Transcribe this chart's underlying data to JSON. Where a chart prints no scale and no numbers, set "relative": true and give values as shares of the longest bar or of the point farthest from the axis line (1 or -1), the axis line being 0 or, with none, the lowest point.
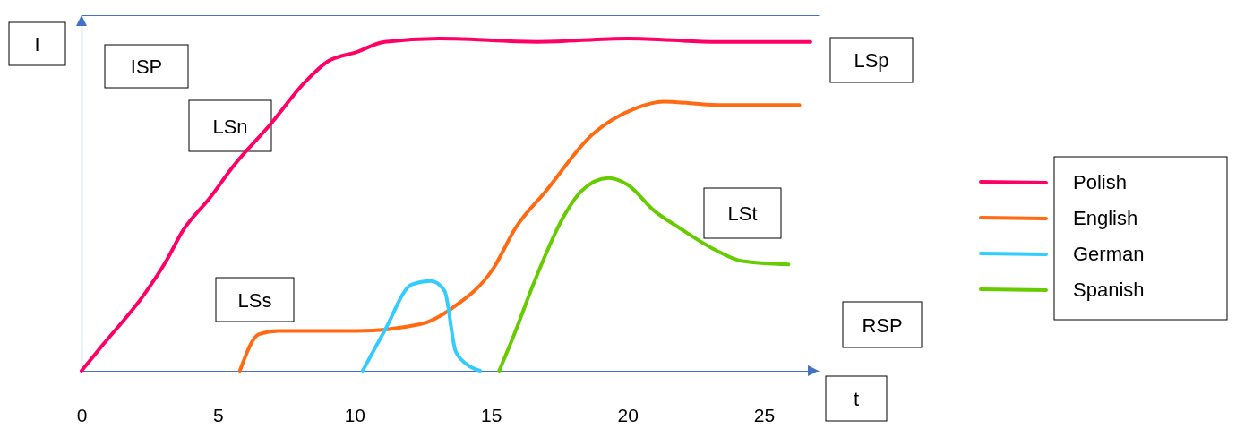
{
  "chart_data": {
    "type": "line",
    "relative": true,
    "xlabel": "t",
    "ylabel": "I",
    "xlim": [
      0,
      27
    ],
    "xticks": [
      0,
      5,
      10,
      15,
      20,
      25
    ],
    "legend": "right",
    "grid": false,
    "marker": "none",
    "line_style": "solid",
    "annotations": [
      "ISP",
      "LSn",
      "LSp",
      "LSs",
      "LSt",
      "RSP"
    ],
    "series": [
      {
        "name": "Polish",
        "color": "#ff0066",
        "x": [
          0,
          0.8,
          2.3,
          3.1,
          3.7,
          4.7,
          5.6,
          6.9,
          8.2,
          9.0,
          10.1,
          11.1,
          13.1,
          16.7,
          20,
          23.3,
          26.7
        ],
        "values": [
          0,
          0.08,
          0.23,
          0.33,
          0.42,
          0.52,
          0.62,
          0.74,
          0.87,
          0.93,
          0.96,
          0.99,
          1.0,
          0.99,
          1.0,
          0.99,
          0.99
        ]
      },
      {
        "name": "English",
        "color": "#ff6a13",
        "x": [
          5.8,
          6.5,
          7.2,
          10.1,
          12.4,
          13.6,
          15.1,
          15.9,
          17.0,
          18.7,
          20.3,
          21.3,
          23.3,
          26.3
        ],
        "values": [
          0,
          0.11,
          0.12,
          0.12,
          0.14,
          0.19,
          0.31,
          0.43,
          0.54,
          0.71,
          0.79,
          0.81,
          0.8,
          0.8
        ]
      },
      {
        "name": "German",
        "color": "#33ccff",
        "x": [
          10.3,
          11.1,
          12.1,
          12.8,
          13.3,
          13.7,
          14.1,
          14.6
        ],
        "values": [
          0,
          0.12,
          0.26,
          0.27,
          0.24,
          0.06,
          0.02,
          0
        ]
      },
      {
        "name": "Spanish",
        "color": "#66cc00",
        "x": [
          15.3,
          15.9,
          16.5,
          17.7,
          18.3,
          19.3,
          20.0,
          21.0,
          21.9,
          23.3,
          24.2,
          25.9
        ],
        "values": [
          0,
          0.12,
          0.25,
          0.47,
          0.54,
          0.58,
          0.56,
          0.48,
          0.43,
          0.36,
          0.33,
          0.32
        ]
      }
    ]
  }
}
